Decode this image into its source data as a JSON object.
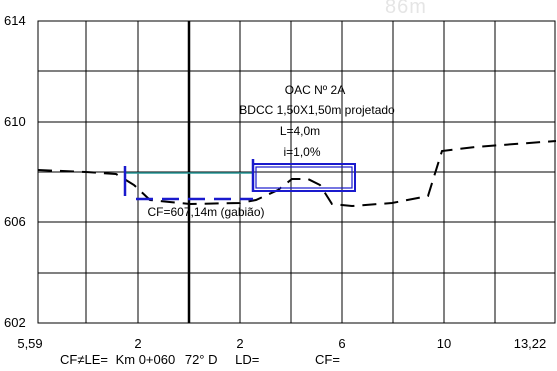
{
  "y_axis": {
    "ticks": [
      "614",
      "610",
      "606",
      "602"
    ]
  },
  "x_axis": {
    "ticks": [
      "5,59",
      "2",
      "2",
      "6",
      "10",
      "13,22"
    ]
  },
  "annotations": {
    "title": "OAC Nº 2A",
    "line1": "BDCC 1,50X1,50m projetado",
    "line2": "L=4,0m",
    "line3": "i=1,0%",
    "cf_label": "CF=607,14m (gabião)"
  },
  "footer": {
    "cf_le": "CF≠LE=",
    "km": "Km 0+060",
    "angle": "72° D",
    "ld": "LD=",
    "cf": "CF="
  },
  "watermark": "86m",
  "colors": {
    "grid": "#000000",
    "structure": "#1a1acd",
    "water": "#2a9a9a",
    "terrain": "#000000"
  }
}
